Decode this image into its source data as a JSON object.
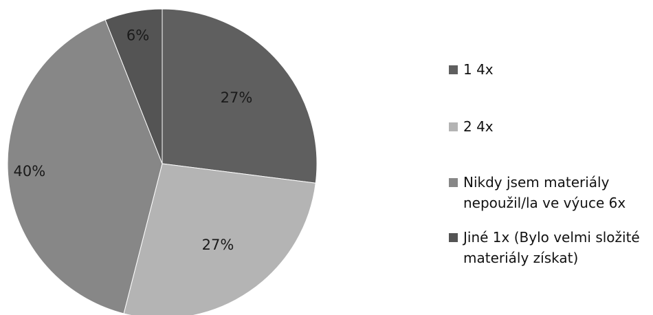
{
  "chart_data": {
    "type": "pie",
    "categories": [
      "1 4x",
      "2 4x",
      "Nikdy jsem materiály\nnepoužil/la ve výuce 6x",
      "Jiné 1x (Bylo velmi složité\nmateriály získat)"
    ],
    "values": [
      27,
      27,
      40,
      6
    ],
    "labels": [
      "27%",
      "27%",
      "40%",
      "6%"
    ],
    "colors": [
      "#5f5f5f",
      "#b4b4b4",
      "#878787",
      "#545454"
    ],
    "legend_position": "right"
  }
}
